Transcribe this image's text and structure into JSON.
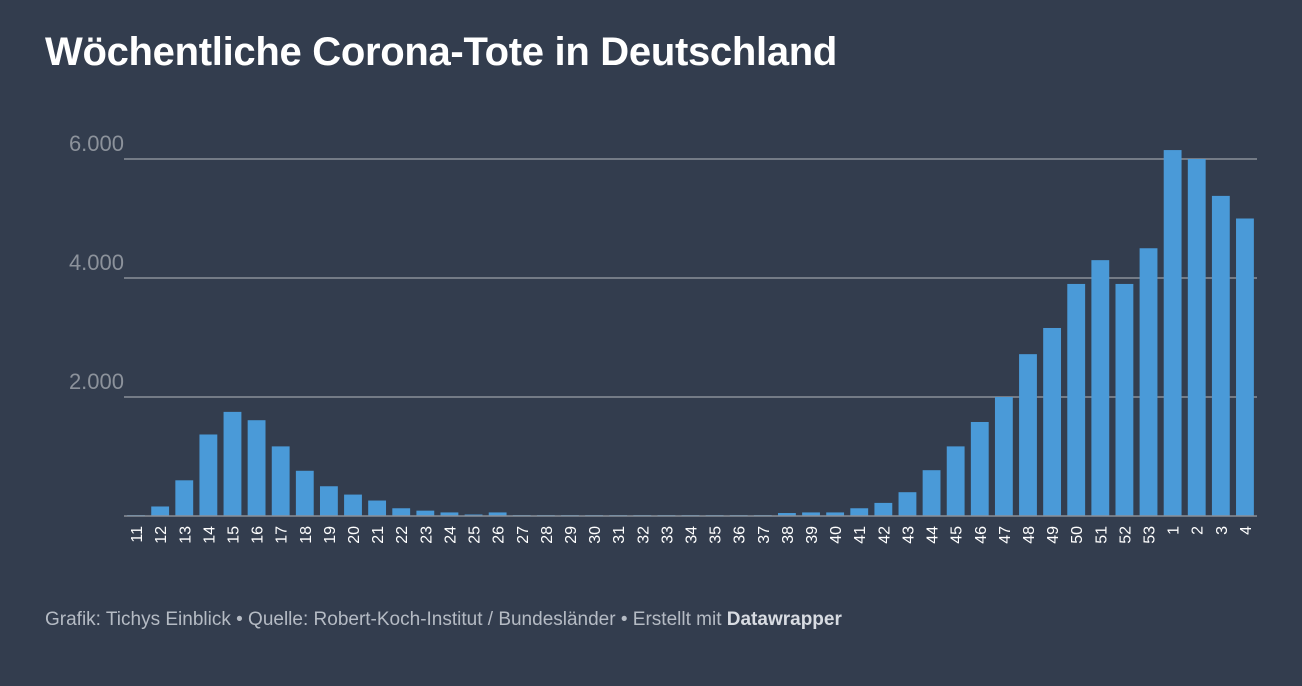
{
  "title": "Wöchentliche Corona-Tote in Deutschland",
  "footer": {
    "grafik": "Grafik: Tichys Einblick",
    "separator": "•",
    "source": "Quelle: Robert-Koch-Institut / Bundesländer",
    "created_prefix": "Erstellt mit",
    "brand": "Datawrapper"
  },
  "colors": {
    "background": "#333d4e",
    "bar": "#4a9ad8",
    "gridline": "#8a9099",
    "tick_label": "#8c929b",
    "x_label": "#ffffff"
  },
  "chart_data": {
    "type": "bar",
    "title": "Wöchentliche Corona-Tote in Deutschland",
    "xlabel": "",
    "ylabel": "",
    "ylim": [
      0,
      6500
    ],
    "yticks": [
      2000,
      4000,
      6000
    ],
    "ytick_labels": [
      "2.000",
      "4.000",
      "6.000"
    ],
    "grid": true,
    "categories": [
      "11",
      "12",
      "13",
      "14",
      "15",
      "16",
      "17",
      "18",
      "19",
      "20",
      "21",
      "22",
      "23",
      "24",
      "25",
      "26",
      "27",
      "28",
      "29",
      "30",
      "31",
      "32",
      "33",
      "34",
      "35",
      "36",
      "37",
      "38",
      "39",
      "40",
      "41",
      "42",
      "43",
      "44",
      "45",
      "46",
      "47",
      "48",
      "49",
      "50",
      "51",
      "52",
      "53",
      "1",
      "2",
      "3",
      "4"
    ],
    "values": [
      15,
      160,
      600,
      1370,
      1750,
      1610,
      1170,
      760,
      500,
      360,
      260,
      130,
      90,
      60,
      25,
      60,
      15,
      15,
      15,
      15,
      15,
      15,
      15,
      15,
      15,
      15,
      15,
      50,
      60,
      60,
      130,
      220,
      400,
      770,
      1170,
      1580,
      2000,
      2720,
      3160,
      3900,
      4300,
      3900,
      4500,
      6150,
      6000,
      5380,
      5000
    ]
  }
}
